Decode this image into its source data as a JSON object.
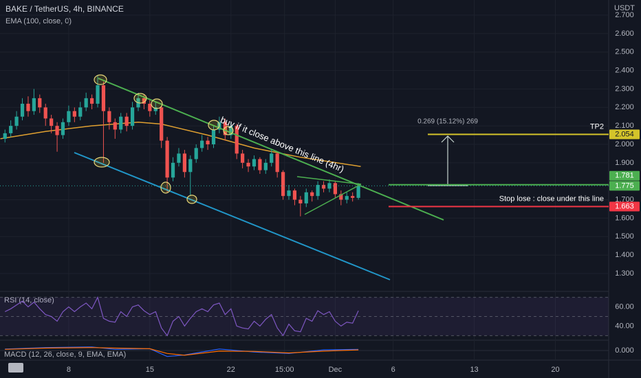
{
  "header": {
    "symbol": "BAKE / TetherUS, 4h, BINANCE",
    "currency": "USDT"
  },
  "chart_data": {
    "type": "candlestick",
    "x": [
      2.5,
      3,
      3.5,
      4,
      4.5,
      5,
      5.5,
      6,
      6.5,
      7,
      7.5,
      8,
      8.5,
      9,
      9.5,
      10,
      10.5,
      11,
      11.5,
      12,
      12.5,
      13,
      13.5,
      14,
      14.5,
      15,
      15.5,
      16,
      16.5,
      17,
      17.5,
      18,
      18.5,
      19,
      19.5,
      20,
      20.5,
      21,
      21.5,
      22,
      22.5,
      23,
      23.5,
      24,
      24.5,
      25,
      25.5,
      26,
      26.5,
      27,
      27.5,
      28,
      28.5,
      29,
      29.5,
      30,
      30.5,
      31,
      31.5,
      32,
      32.5,
      33
    ],
    "open": [
      2.03,
      2.06,
      2.1,
      2.15,
      2.22,
      2.18,
      2.25,
      2.2,
      2.14,
      2.1,
      2.05,
      2.12,
      2.18,
      2.15,
      2.2,
      2.25,
      2.22,
      2.32,
      2.18,
      2.12,
      2.08,
      2.15,
      2.1,
      2.2,
      2.25,
      2.22,
      2.18,
      2.2,
      2.02,
      1.82,
      1.9,
      1.95,
      1.85,
      1.92,
      1.98,
      2.02,
      2.0,
      2.08,
      2.12,
      2.05,
      2.1,
      1.95,
      1.9,
      1.88,
      1.92,
      1.86,
      1.9,
      1.95,
      1.85,
      1.72,
      1.75,
      1.7,
      1.68,
      1.74,
      1.72,
      1.78,
      1.76,
      1.79,
      1.73,
      1.7,
      1.72,
      1.71
    ],
    "high": [
      2.08,
      2.13,
      2.18,
      2.25,
      2.26,
      2.3,
      2.27,
      2.22,
      2.16,
      2.12,
      2.14,
      2.21,
      2.2,
      2.23,
      2.28,
      2.27,
      2.37,
      2.34,
      2.2,
      2.14,
      2.17,
      2.17,
      2.23,
      2.28,
      2.27,
      2.24,
      2.23,
      2.21,
      2.04,
      1.93,
      1.98,
      1.97,
      1.94,
      2.0,
      2.05,
      2.04,
      2.1,
      2.15,
      2.14,
      2.12,
      2.11,
      1.97,
      1.92,
      1.94,
      1.93,
      1.92,
      1.97,
      1.96,
      1.86,
      1.78,
      1.76,
      1.72,
      1.76,
      1.75,
      1.8,
      1.8,
      1.81,
      1.8,
      1.75,
      1.74,
      1.74,
      1.79
    ],
    "low": [
      2.01,
      2.04,
      2.08,
      2.13,
      2.15,
      2.16,
      2.17,
      2.1,
      2.06,
      1.96,
      2.03,
      2.1,
      2.12,
      2.13,
      2.18,
      2.19,
      2.2,
      1.9,
      2.08,
      2.03,
      2.06,
      2.07,
      2.08,
      2.18,
      2.19,
      2.15,
      2.16,
      1.98,
      1.74,
      1.8,
      1.88,
      1.82,
      1.72,
      1.9,
      1.96,
      1.97,
      1.98,
      2.06,
      2.02,
      2.03,
      1.92,
      1.87,
      1.85,
      1.86,
      1.84,
      1.84,
      1.88,
      1.82,
      1.7,
      1.7,
      1.67,
      1.61,
      1.66,
      1.69,
      1.7,
      1.74,
      1.74,
      1.71,
      1.67,
      1.68,
      1.69,
      1.7
    ],
    "close": [
      2.06,
      2.1,
      2.15,
      2.22,
      2.18,
      2.25,
      2.2,
      2.14,
      2.1,
      2.05,
      2.12,
      2.18,
      2.15,
      2.2,
      2.25,
      2.22,
      2.32,
      2.18,
      2.12,
      2.08,
      2.15,
      2.1,
      2.2,
      2.25,
      2.22,
      2.18,
      2.2,
      2.02,
      1.82,
      1.9,
      1.95,
      1.85,
      1.92,
      1.98,
      2.02,
      2.0,
      2.08,
      2.12,
      2.05,
      2.1,
      1.95,
      1.9,
      1.88,
      1.92,
      1.86,
      1.9,
      1.95,
      1.85,
      1.72,
      1.75,
      1.7,
      1.68,
      1.74,
      1.72,
      1.78,
      1.76,
      1.79,
      1.73,
      1.7,
      1.72,
      1.71,
      1.775
    ],
    "up_color": "#26a69a",
    "down_color": "#ef5350",
    "xlim": [
      2.07,
      54.6
    ],
    "xticks": [
      8,
      15,
      22,
      {
        "value": 26.625,
        "label": "15:00"
      },
      {
        "value": 31,
        "label": "Dec"
      },
      {
        "value": 36,
        "label": "6"
      },
      {
        "value": 43,
        "label": "13"
      },
      {
        "value": 50,
        "label": "20"
      }
    ],
    "ylim": [
      1.218,
      2.782
    ],
    "yticks": [
      {
        "value": 2.7,
        "label": "2.700"
      },
      {
        "value": 2.6,
        "label": "2.600"
      },
      {
        "value": 2.5,
        "label": "2.500"
      },
      {
        "value": 2.4,
        "label": "2.400"
      },
      {
        "value": 2.3,
        "label": "2.300"
      },
      {
        "value": 2.2,
        "label": "2.200"
      },
      {
        "value": 2.1,
        "label": "2.100"
      },
      {
        "value": 2.0,
        "label": "2.000"
      },
      {
        "value": 1.9,
        "label": "1.900"
      },
      {
        "value": 1.7,
        "label": "1.700"
      },
      {
        "value": 1.6,
        "label": "1.600"
      },
      {
        "value": 1.5,
        "label": "1.500"
      },
      {
        "value": 1.4,
        "label": "1.400"
      },
      {
        "value": 1.3,
        "label": "1.300"
      }
    ],
    "grid": true,
    "ema": {
      "name": "EMA (100, close, 0)",
      "color": "#e0a030",
      "x": [
        2.1,
        6,
        10,
        14,
        16,
        20,
        24,
        28,
        33.2
      ],
      "values": [
        2.03,
        2.07,
        2.1,
        2.12,
        2.11,
        2.05,
        1.98,
        1.93,
        1.88
      ]
    },
    "levels": [
      {
        "label": "TP2",
        "value": 2.054,
        "color": "#d4c42a"
      },
      {
        "value": 1.781,
        "color": "#4caf50"
      },
      {
        "label": "Stop lose : close under this line",
        "value": 1.663,
        "color": "#f23645"
      }
    ],
    "annotations": {
      "trend": "buy if it close above this line (4hr)",
      "measure": "0.269 (15.12%) 269"
    },
    "rsi": {
      "name": "RSI (14, close)",
      "color": "#7e57c2",
      "values": [
        55,
        58,
        62,
        66,
        60,
        65,
        58,
        52,
        50,
        45,
        55,
        60,
        55,
        60,
        64,
        58,
        70,
        48,
        45,
        44,
        55,
        50,
        60,
        62,
        56,
        52,
        55,
        38,
        30,
        45,
        50,
        40,
        48,
        55,
        58,
        55,
        62,
        64,
        52,
        58,
        40,
        38,
        37,
        45,
        40,
        47,
        52,
        38,
        30,
        42,
        35,
        34,
        48,
        45,
        56,
        52,
        55,
        45,
        40,
        44,
        43,
        56
      ],
      "ylim": [
        25.2,
        73.3
      ],
      "yticks": [
        {
          "value": 60,
          "label": "60.00"
        },
        {
          "value": 40,
          "label": "40.00"
        }
      ],
      "bands": [
        70,
        50,
        30
      ]
    },
    "macd": {
      "name": "MACD (12, 26, close, 9, EMA, EMA)",
      "ylim": [
        -0.03,
        0.03
      ],
      "yticks": [
        {
          "value": 0,
          "label": "0.000"
        }
      ],
      "x": [
        2.5,
        6,
        10,
        12,
        15,
        16.5,
        18,
        21,
        24,
        27,
        30,
        33
      ],
      "series": [
        {
          "color": "#2962ff",
          "values": [
            0.005,
            0.01,
            0.012,
            0.004,
            0.006,
            -0.02,
            -0.015,
            0.005,
            -0.005,
            -0.01,
            0.002,
            0.004
          ]
        },
        {
          "color": "#ff6d00",
          "values": [
            0.004,
            0.008,
            0.01,
            0.008,
            0.006,
            -0.01,
            -0.016,
            -0.002,
            -0.003,
            -0.008,
            -0.002,
            0.002
          ]
        }
      ]
    }
  }
}
